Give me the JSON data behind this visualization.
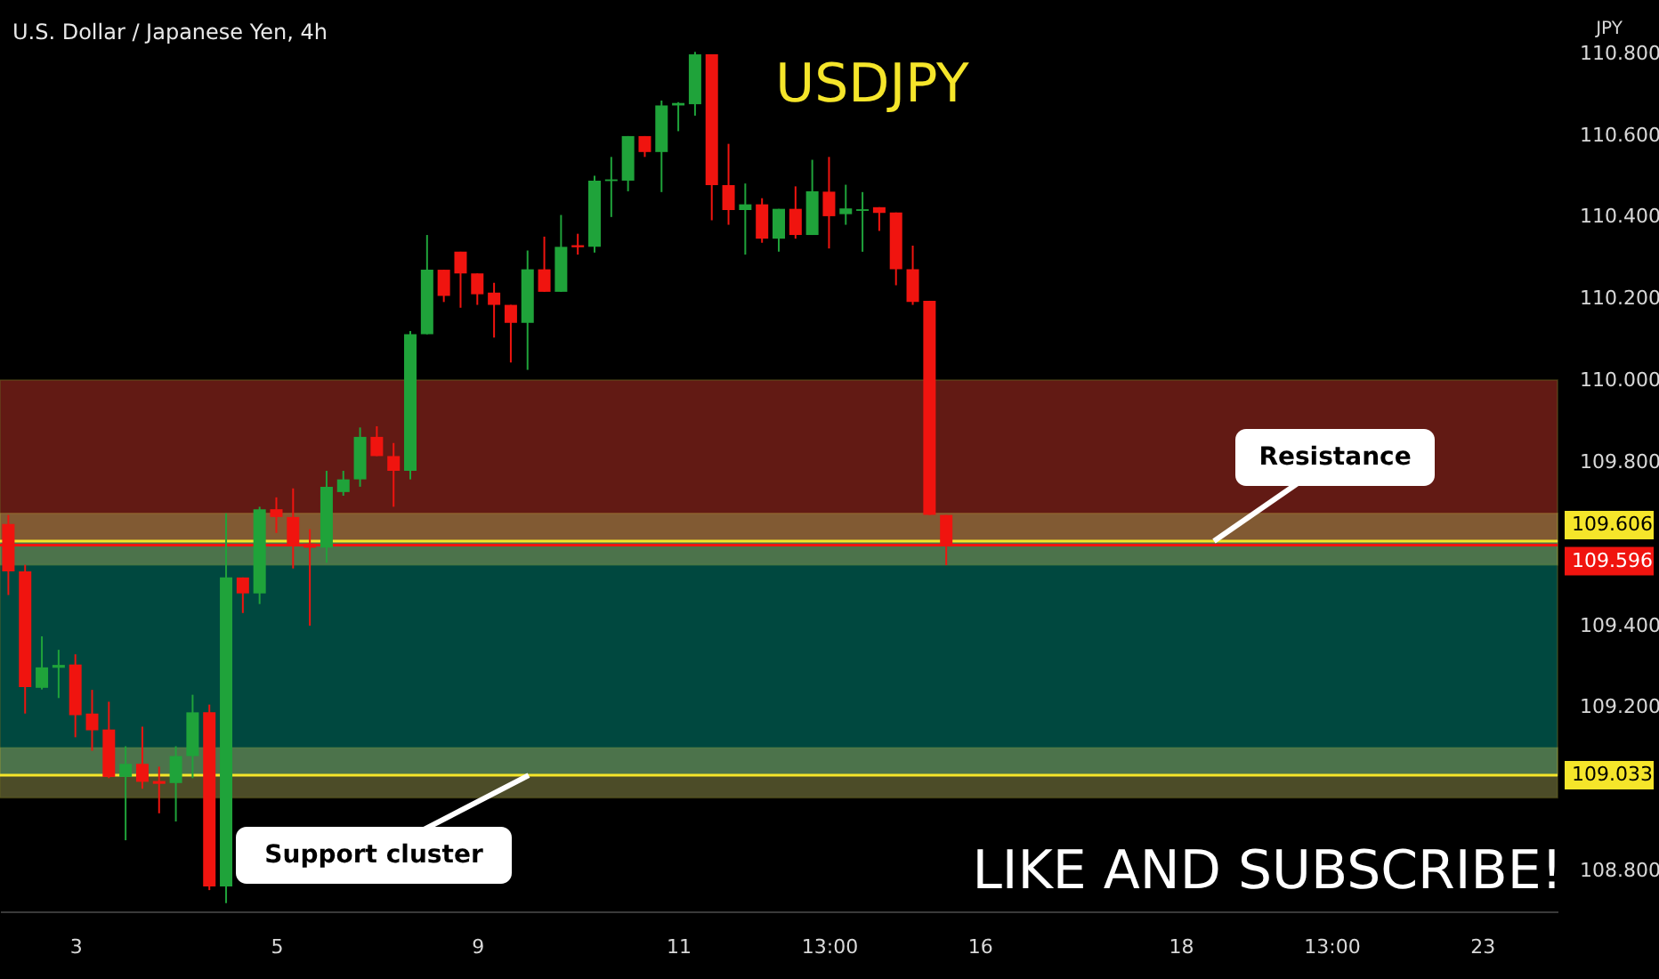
{
  "chart_data": {
    "type": "candlestick",
    "title": "U.S. Dollar / Japanese Yen, 4h",
    "ylabel": "JPY",
    "categories": [
      null,
      null,
      null,
      null,
      "3",
      null,
      null,
      null,
      null,
      null,
      null,
      null,
      null,
      null,
      null,
      null,
      "5",
      null,
      null,
      null,
      null,
      null,
      null,
      null,
      null,
      null,
      null,
      null,
      "9",
      null,
      null,
      null,
      null,
      null,
      null,
      null,
      null,
      null,
      null,
      null,
      "11",
      null,
      null,
      null,
      null,
      null,
      null,
      null,
      null,
      "13:00",
      null,
      null,
      null,
      null,
      null,
      null,
      null,
      null,
      "16",
      null,
      null,
      null,
      null,
      null,
      null,
      null,
      null,
      null,
      null,
      null,
      "18",
      null,
      null,
      null,
      null,
      null,
      null,
      null,
      null,
      "13:00",
      null,
      null,
      null,
      null,
      null,
      null,
      null,
      null,
      "23",
      null,
      null,
      null,
      null
    ],
    "ohlc": [
      [
        109.648,
        109.67,
        109.474,
        109.532
      ],
      [
        109.532,
        109.548,
        109.184,
        109.249
      ],
      [
        109.247,
        109.373,
        109.243,
        109.297
      ],
      [
        109.296,
        109.34,
        109.222,
        109.303
      ],
      [
        109.304,
        109.329,
        109.126,
        109.18
      ],
      [
        109.184,
        109.242,
        109.093,
        109.143
      ],
      [
        109.145,
        109.213,
        109.026,
        109.029
      ],
      [
        109.029,
        109.104,
        108.874,
        109.061
      ],
      [
        109.061,
        109.152,
        109.0,
        109.017
      ],
      [
        109.019,
        109.054,
        108.94,
        109.012
      ],
      [
        109.014,
        109.104,
        108.92,
        109.08
      ],
      [
        109.08,
        109.23,
        109.026,
        109.187
      ],
      [
        109.187,
        109.206,
        108.752,
        108.761
      ],
      [
        108.761,
        109.674,
        108.72,
        109.517
      ],
      [
        109.517,
        109.517,
        109.43,
        109.478
      ],
      [
        109.478,
        109.69,
        109.452,
        109.684
      ],
      [
        109.684,
        109.713,
        109.626,
        109.665
      ],
      [
        109.665,
        109.735,
        109.539,
        109.597
      ],
      [
        109.6,
        109.635,
        109.399,
        109.59
      ],
      [
        109.59,
        109.778,
        109.553,
        109.739
      ],
      [
        109.726,
        109.778,
        109.717,
        109.757
      ],
      [
        109.757,
        109.884,
        109.739,
        109.861
      ],
      [
        109.861,
        109.887,
        109.814,
        109.814
      ],
      [
        109.814,
        109.846,
        109.69,
        109.778
      ],
      [
        109.778,
        110.12,
        109.757,
        110.112
      ],
      [
        110.112,
        110.355,
        110.112,
        110.27
      ],
      [
        110.27,
        110.27,
        110.191,
        110.206
      ],
      [
        110.314,
        110.314,
        110.177,
        110.261
      ],
      [
        110.261,
        110.261,
        110.184,
        110.21
      ],
      [
        110.214,
        110.238,
        110.104,
        110.184
      ],
      [
        110.184,
        110.184,
        110.043,
        110.14
      ],
      [
        110.14,
        110.317,
        110.025,
        110.271
      ],
      [
        110.271,
        110.351,
        110.216,
        110.216
      ],
      [
        110.216,
        110.404,
        110.216,
        110.326
      ],
      [
        110.33,
        110.358,
        110.307,
        110.325
      ],
      [
        110.326,
        110.5,
        110.312,
        110.488
      ],
      [
        110.487,
        110.546,
        110.399,
        110.491
      ],
      [
        110.488,
        110.597,
        110.462,
        110.597
      ],
      [
        110.597,
        110.597,
        110.546,
        110.558
      ],
      [
        110.558,
        110.684,
        110.46,
        110.672
      ],
      [
        110.672,
        110.68,
        110.609,
        110.678
      ],
      [
        110.675,
        110.803,
        110.647,
        110.797
      ],
      [
        110.797,
        110.797,
        110.391,
        110.477
      ],
      [
        110.477,
        110.578,
        110.38,
        110.416
      ],
      [
        110.416,
        110.481,
        110.307,
        110.43
      ],
      [
        110.43,
        110.445,
        110.336,
        110.346
      ],
      [
        110.346,
        110.419,
        110.314,
        110.419
      ],
      [
        110.419,
        110.474,
        110.346,
        110.355
      ],
      [
        110.355,
        110.539,
        110.355,
        110.462
      ],
      [
        110.461,
        110.546,
        110.322,
        110.401
      ],
      [
        110.406,
        110.478,
        110.38,
        110.42
      ],
      [
        110.414,
        110.46,
        110.314,
        110.418
      ],
      [
        110.423,
        110.423,
        110.365,
        110.409
      ],
      [
        110.41,
        110.41,
        110.232,
        110.271
      ],
      [
        110.271,
        110.329,
        110.184,
        110.191
      ],
      [
        110.194,
        110.194,
        109.67,
        109.67
      ],
      [
        109.67,
        109.67,
        109.547,
        109.593
      ],
      null,
      null,
      null,
      null,
      null,
      null,
      null,
      null,
      null,
      null,
      null,
      null,
      null,
      null,
      null,
      null,
      null,
      null,
      null,
      null,
      null,
      null,
      null,
      null,
      null,
      null,
      null,
      null,
      null,
      null,
      null,
      null,
      null,
      null,
      null,
      null
    ],
    "colors": [
      "#f0140f",
      "#f0140f",
      "#1fa33a",
      "#1fa33a",
      "#f0140f",
      "#f0140f",
      "#f0140f",
      "#1fa33a",
      "#f0140f",
      "#f0140f",
      "#1fa33a",
      "#1fa33a",
      "#f0140f",
      "#1fa33a",
      "#f0140f",
      "#1fa33a",
      "#f0140f",
      "#f0140f",
      "#f0140f",
      "#1fa33a",
      "#1fa33a",
      "#1fa33a",
      "#f0140f",
      "#f0140f",
      "#1fa33a",
      "#1fa33a",
      "#f0140f",
      "#f0140f",
      "#f0140f",
      "#f0140f",
      "#f0140f",
      "#1fa33a",
      "#f0140f",
      "#1fa33a",
      "#f0140f",
      "#1fa33a",
      "#1fa33a",
      "#1fa33a",
      "#f0140f",
      "#1fa33a",
      "#1fa33a",
      "#1fa33a",
      "#f0140f",
      "#f0140f",
      "#1fa33a",
      "#f0140f",
      "#1fa33a",
      "#f0140f",
      "#1fa33a",
      "#f0140f",
      "#1fa33a",
      "#1fa33a",
      "#f0140f",
      "#f0140f",
      "#f0140f",
      "#f0140f",
      "#f0140f",
      null,
      null,
      null,
      null,
      null,
      null,
      null,
      null,
      null,
      null,
      null,
      null,
      null,
      null,
      null,
      null,
      null,
      null,
      null,
      null,
      null,
      null,
      null,
      null,
      null,
      null,
      null,
      null,
      null,
      null,
      null,
      null,
      null,
      null,
      null,
      null
    ],
    "ylim": [
      108.7,
      110.93
    ],
    "yticks": [
      {
        "value": 108.8,
        "label": "108.800"
      },
      {
        "value": 109.2,
        "label": "109.200"
      },
      {
        "value": 109.4,
        "label": "109.400"
      },
      {
        "value": 109.8,
        "label": "109.800"
      },
      {
        "value": 110.0,
        "label": "110.000"
      },
      {
        "value": 110.2,
        "label": "110.200"
      },
      {
        "value": 110.4,
        "label": "110.400"
      },
      {
        "value": 110.6,
        "label": "110.600"
      },
      {
        "value": 110.8,
        "label": "110.800"
      }
    ],
    "ref_lines": [
      {
        "axis": "y",
        "value": 109.596,
        "label": "109.596",
        "color": "#f0140f"
      },
      {
        "axis": "y",
        "value": 109.606,
        "label": "109.606",
        "color": "#f5e52a"
      },
      {
        "axis": "y",
        "value": 109.033,
        "label": "109.033",
        "color": "#f5e52a"
      }
    ],
    "bands": [
      {
        "axis": "y",
        "from": 109.606,
        "to": 110.0,
        "color": "#d93a2e"
      },
      {
        "axis": "y",
        "from": 109.033,
        "to": 109.606,
        "color": "#00a08c"
      },
      {
        "axis": "y",
        "from": 109.548,
        "to": 109.674,
        "color": "#a8a85a"
      },
      {
        "axis": "y",
        "from": 108.978,
        "to": 109.1,
        "color": "#a8a85a"
      }
    ],
    "annotations": [
      "USDJPY",
      "LIKE AND SUBSCRIBE!",
      {
        "text": "Support cluster",
        "y": 109.033
      },
      {
        "text": "Resistance",
        "y": 109.606
      }
    ]
  }
}
